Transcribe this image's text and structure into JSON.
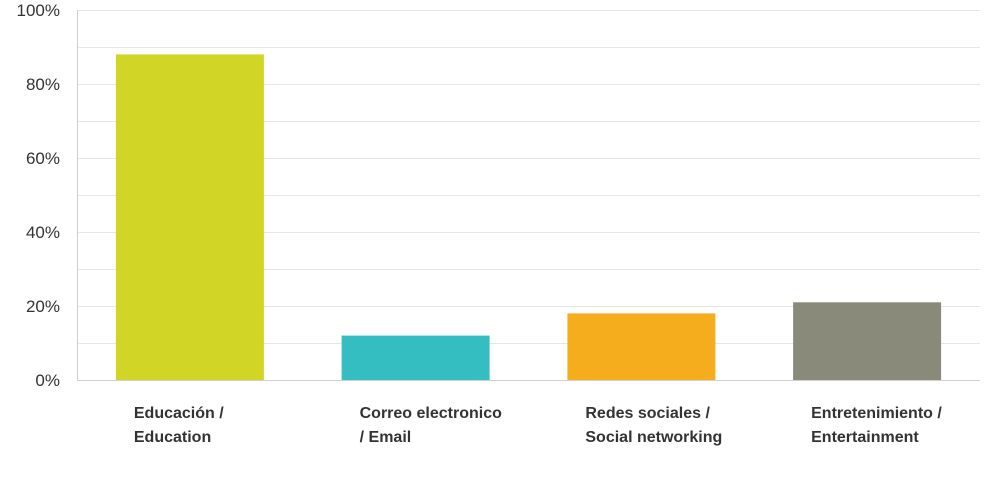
{
  "chart_data": {
    "type": "bar",
    "categories": [
      "Educación / Education",
      "Correo electronico / Email",
      "Redes sociales / Social networking",
      "Entretenimiento / Entertainment"
    ],
    "values": [
      88,
      12,
      18,
      21
    ],
    "colors": [
      "#d1d626",
      "#35bec2",
      "#f5ad1e",
      "#8a8a7b"
    ],
    "title": "",
    "xlabel": "",
    "ylabel": "",
    "ylim": [
      0,
      100
    ],
    "yticks": [
      "0%",
      "20%",
      "40%",
      "60%",
      "80%",
      "100%"
    ],
    "grid": true,
    "legend": "none"
  }
}
